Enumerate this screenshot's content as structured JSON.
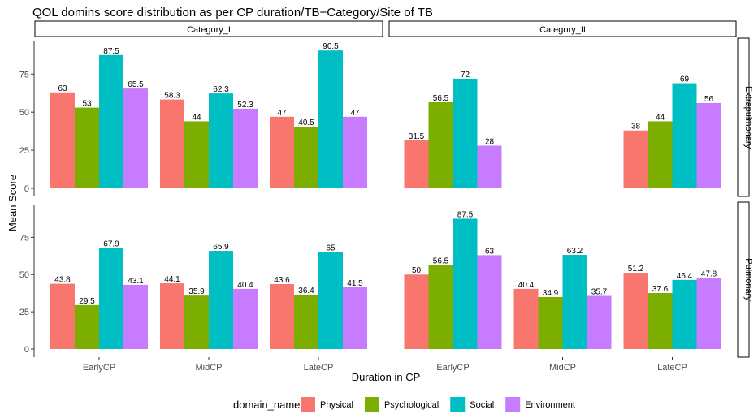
{
  "chart_data": {
    "type": "bar",
    "title": "QOL domins score distribution as per CP duration/TB−Category/Site of TB",
    "xlabel": "Duration in CP",
    "ylabel": "Mean Score",
    "categories": [
      "EarlyCP",
      "MidCP",
      "LateCP"
    ],
    "ylim": [
      0,
      97
    ],
    "yticks": [
      0,
      25,
      50,
      75
    ],
    "grid": false,
    "legend_position": "bottom",
    "legend_title": "domain_name",
    "series_names": [
      "Physical",
      "Psychological",
      "Social",
      "Environment"
    ],
    "colors": [
      "#F8766D",
      "#7CAE00",
      "#00BFC4",
      "#C77CFF"
    ],
    "facet_columns": [
      "Category_I",
      "Category_II"
    ],
    "facet_rows": [
      "Extrapulmonary",
      "Pulmonary"
    ],
    "panels": [
      {
        "col": "Category_I",
        "row": "Extrapulmonary",
        "values": [
          [
            63,
            53,
            87.5,
            65.5
          ],
          [
            58.3,
            44,
            62.3,
            52.3
          ],
          [
            47,
            40.5,
            90.5,
            47
          ]
        ],
        "labels": [
          [
            "63",
            "53",
            "87.5",
            "65.5"
          ],
          [
            "58.3",
            "44",
            "62.3",
            "52.3"
          ],
          [
            "47",
            "40.5",
            "90.5",
            "47"
          ]
        ]
      },
      {
        "col": "Category_II",
        "row": "Extrapulmonary",
        "values": [
          [
            31.5,
            56.5,
            72,
            28
          ],
          null,
          [
            38,
            44,
            69,
            56
          ]
        ],
        "labels": [
          [
            "31.5",
            "56.5",
            "72",
            "28"
          ],
          null,
          [
            "38",
            "44",
            "69",
            "56"
          ]
        ]
      },
      {
        "col": "Category_I",
        "row": "Pulmonary",
        "values": [
          [
            43.8,
            29.5,
            67.9,
            43.1
          ],
          [
            44.1,
            35.9,
            65.9,
            40.4
          ],
          [
            43.6,
            36.4,
            65,
            41.5
          ]
        ],
        "labels": [
          [
            "43.8",
            "29.5",
            "67.9",
            "43.1"
          ],
          [
            "44.1",
            "35.9",
            "65.9",
            "40.4"
          ],
          [
            "43.6",
            "36.4",
            "65",
            "41.5"
          ]
        ]
      },
      {
        "col": "Category_II",
        "row": "Pulmonary",
        "values": [
          [
            50,
            56.5,
            87.5,
            63
          ],
          [
            40.4,
            34.9,
            63.2,
            35.7
          ],
          [
            51.2,
            37.6,
            46.4,
            47.8
          ]
        ],
        "labels": [
          [
            "50",
            "56.5",
            "87.5",
            "63"
          ],
          [
            "40.4",
            "34.9",
            "63.2",
            "35.7"
          ],
          [
            "51.2",
            "37.6",
            "46.4",
            "47.8"
          ]
        ]
      }
    ]
  }
}
